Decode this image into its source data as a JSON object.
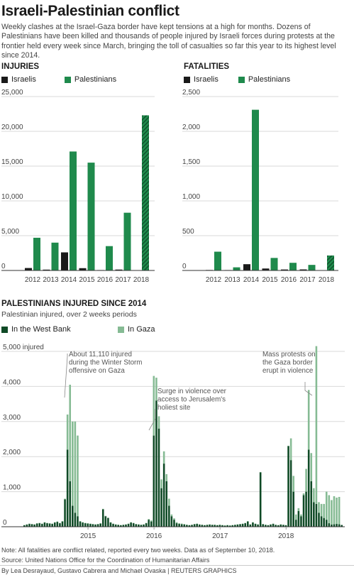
{
  "header": {
    "title": "Israeli-Palestinian conflict",
    "intro": "Weekly clashes at the Israel-Gaza border have kept tensions at a high for months. Dozens of Palestinians have been killed and thousands of people injured by Israeli forces during protests at the frontier held every week since March, bringing the toll of casualties so far this year to its highest level since 2014."
  },
  "injuries": {
    "section_title": "INJURIES",
    "legend": [
      "Israelis",
      "Palestinians"
    ]
  },
  "fatalities": {
    "section_title": "FATALITIES",
    "legend": [
      "Israelis",
      "Palestinians"
    ]
  },
  "biweekly": {
    "section_title": "PALESTINIANS INJURED SINCE 2014",
    "subtitle": "Palestinian injured, over 2 weeks periods",
    "legend": [
      "In the West Bank",
      "In Gaza"
    ],
    "annotations": [
      "About 11,110 injured during the Winter Storm offensive on Gaza",
      "Surge in violence over access to Jerusalem's holiest site",
      "Mass protests on the Gaza border erupt in violence"
    ]
  },
  "footer": {
    "note": "Note: All fatalities are conflict related, reported every two weeks. Data as of September 10, 2018.",
    "source": "Source: United Nations Office for the Coordination of Humanitarian Affairs",
    "credit": "By Lea Desrayaud, Gustavo Cabrera and Michael Ovaska | REUTERS GRAPHICS"
  },
  "colors": {
    "israelis": "#1a1a1a",
    "palestinians": "#1f8a4c",
    "west_bank": "#0f4a26",
    "gaza": "#86bb94",
    "grid": "#d9d9d9",
    "annotation": "#555555"
  },
  "chart_data": [
    {
      "type": "bar",
      "title": "INJURIES",
      "categories": [
        "2012",
        "2013",
        "2014",
        "2015",
        "2016",
        "2017",
        "2018"
      ],
      "series": [
        {
          "name": "Israelis",
          "values": [
            350,
            120,
            2600,
            330,
            60,
            130,
            40
          ]
        },
        {
          "name": "Palestinians",
          "values": [
            4700,
            4000,
            17100,
            15500,
            3500,
            8300,
            22300
          ]
        }
      ],
      "ylim": [
        0,
        25000
      ],
      "yticks": [
        0,
        5000,
        10000,
        15000,
        20000,
        25000
      ],
      "ytick_labels": [
        "0",
        "5,000",
        "10,000",
        "15,000",
        "20,000",
        "25,000"
      ],
      "hatched_category": "2018",
      "legend_position": "top-left"
    },
    {
      "type": "bar",
      "title": "FATALITIES",
      "categories": [
        "2012",
        "2013",
        "2014",
        "2015",
        "2016",
        "2017",
        "2018"
      ],
      "series": [
        {
          "name": "Israelis",
          "values": [
            7,
            6,
            90,
            28,
            14,
            15,
            5
          ]
        },
        {
          "name": "Palestinians",
          "values": [
            270,
            45,
            2310,
            180,
            110,
            80,
            215
          ]
        }
      ],
      "ylim": [
        0,
        2500
      ],
      "yticks": [
        0,
        500,
        1000,
        1500,
        2000,
        2500
      ],
      "ytick_labels": [
        "0",
        "500",
        "1,000",
        "1,500",
        "2,000",
        "2,500"
      ],
      "hatched_category": "2018",
      "legend_position": "top-left"
    },
    {
      "type": "bar",
      "stacked": true,
      "title": "PALESTINIANS INJURED SINCE 2014",
      "subtitle": "Palestinian injured, over 2 weeks periods",
      "period": "two weeks",
      "x_labels": [
        "2015",
        "2016",
        "2017",
        "2018"
      ],
      "x_label_period_index": [
        26,
        52,
        78,
        104
      ],
      "yticks": [
        0,
        1000,
        2000,
        3000,
        4000,
        5000
      ],
      "ytick_labels": [
        "0",
        "1,000",
        "2,000",
        "3,000",
        "4,000",
        "5,000 injured"
      ],
      "ylim": [
        0,
        5000
      ],
      "series": [
        {
          "name": "In the West Bank",
          "values": [
            40,
            60,
            80,
            70,
            60,
            90,
            100,
            80,
            120,
            100,
            90,
            80,
            120,
            140,
            100,
            150,
            780,
            2200,
            1300,
            600,
            400,
            300,
            150,
            120,
            100,
            90,
            80,
            70,
            60,
            70,
            90,
            500,
            300,
            250,
            120,
            80,
            60,
            50,
            40,
            50,
            60,
            80,
            120,
            100,
            70,
            60,
            50,
            60,
            100,
            200,
            150,
            2600,
            3600,
            2800,
            1100,
            1800,
            1300,
            600,
            300,
            200,
            100,
            80,
            70,
            60,
            50,
            40,
            50,
            70,
            80,
            60,
            50,
            40,
            50,
            60,
            50,
            50,
            40,
            50,
            40,
            30,
            40,
            30,
            40,
            50,
            60,
            70,
            80,
            100,
            150,
            60,
            120,
            80,
            60,
            1550,
            70,
            50,
            40,
            60,
            80,
            50,
            40,
            60,
            50,
            40,
            2300,
            1900,
            1000,
            200,
            450,
            300,
            900,
            1000,
            2200,
            1300,
            700,
            650,
            400,
            300,
            250,
            200,
            100,
            60,
            70,
            80,
            70,
            50
          ]
        },
        {
          "name": "In Gaza",
          "values": [
            10,
            10,
            10,
            10,
            10,
            10,
            10,
            10,
            10,
            10,
            10,
            10,
            10,
            10,
            10,
            10,
            20,
            1000,
            2750,
            2400,
            2600,
            2300,
            10,
            10,
            10,
            10,
            10,
            10,
            10,
            10,
            10,
            10,
            10,
            10,
            10,
            10,
            10,
            10,
            10,
            10,
            10,
            10,
            10,
            10,
            10,
            10,
            10,
            10,
            10,
            20,
            30,
            1700,
            650,
            350,
            250,
            350,
            200,
            200,
            50,
            40,
            30,
            20,
            20,
            20,
            10,
            10,
            10,
            10,
            10,
            10,
            10,
            10,
            10,
            10,
            10,
            10,
            10,
            10,
            10,
            10,
            10,
            10,
            10,
            10,
            10,
            10,
            10,
            10,
            10,
            10,
            10,
            10,
            10,
            10,
            10,
            10,
            10,
            10,
            10,
            10,
            10,
            10,
            10,
            10,
            10,
            620,
            450,
            150,
            80,
            50,
            50,
            650,
            1700,
            800,
            400,
            4500,
            300,
            350,
            400,
            800,
            800,
            700,
            800,
            750,
            780
          ]
        }
      ],
      "legend_position": "top"
    }
  ]
}
